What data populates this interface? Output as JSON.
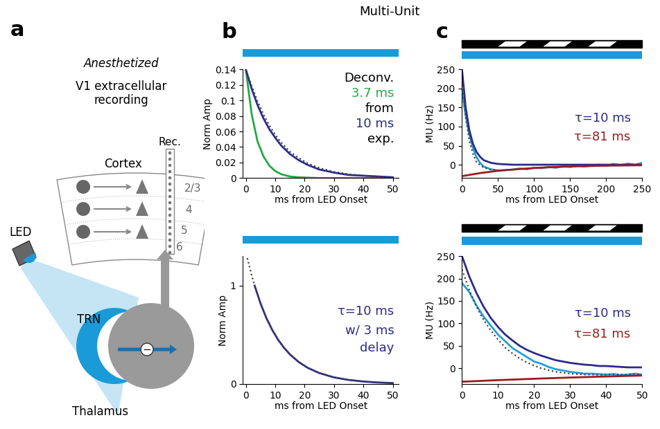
{
  "figure": {
    "title": "Multi-Unit",
    "panel_labels": [
      "a",
      "b",
      "c"
    ]
  },
  "diagram": {
    "condition": "Anesthetized",
    "recording": [
      "V1 extracellular",
      "recording"
    ],
    "probe": "Rec.",
    "cortex": "Cortex",
    "layers": [
      "2/3",
      "4",
      "5",
      "6"
    ],
    "led": "LED",
    "trn": "TRN",
    "thalamus": "Thalamus",
    "inhibition_sign": "−"
  },
  "chart_data": [
    {
      "type": "line",
      "x_label": "ms from LED Onset",
      "y_label": "Norm Amp",
      "xlim": [
        -1,
        52
      ],
      "ylim": [
        0,
        0.14
      ],
      "xticks": [
        0,
        10,
        20,
        30,
        40,
        50
      ],
      "yticks": [
        0,
        0.02,
        0.04,
        0.06,
        0.08,
        0.1,
        0.12,
        0.14
      ],
      "annotations": [
        {
          "text": "Deconv.",
          "color": "#000000"
        },
        {
          "text": "3.7 ms",
          "color": "#22a844"
        },
        {
          "text": "from",
          "color": "#000000"
        },
        {
          "text": "10 ms",
          "color": "#2b2a8c"
        },
        {
          "text": "exp.",
          "color": "#000000"
        }
      ],
      "series": [
        {
          "color": "#22a844",
          "line_style": "solid",
          "x": [
            0,
            2,
            4,
            6,
            8,
            10,
            12,
            15,
            18,
            21,
            25,
            30,
            35,
            40,
            45,
            50
          ],
          "values": [
            0.14,
            0.082,
            0.047,
            0.028,
            0.016,
            0.009,
            0.005,
            0.002,
            0.001,
            0.0005,
            0,
            0,
            0,
            0,
            0,
            0
          ]
        },
        {
          "color": "#2b2a8c",
          "line_style": "solid",
          "x": [
            0,
            2,
            4,
            6,
            8,
            10,
            12,
            15,
            18,
            21,
            25,
            30,
            35,
            40,
            45,
            50
          ],
          "values": [
            0.14,
            0.115,
            0.094,
            0.077,
            0.063,
            0.052,
            0.042,
            0.031,
            0.023,
            0.017,
            0.011,
            0.007,
            0.004,
            0.003,
            0.002,
            0.001
          ]
        },
        {
          "color": "#444444",
          "line_style": "dotted",
          "x": [
            0,
            2,
            4,
            6,
            8,
            10,
            12,
            15,
            18,
            21,
            25,
            30,
            35,
            40,
            45,
            50
          ],
          "values": [
            0.14,
            0.119,
            0.099,
            0.082,
            0.068,
            0.056,
            0.046,
            0.034,
            0.026,
            0.019,
            0.013,
            0.008,
            0.005,
            0.003,
            0.002,
            0.001
          ]
        }
      ]
    },
    {
      "type": "line",
      "x_label": "ms from LED Onset",
      "y_label": "Norm Amp",
      "xlim": [
        -1,
        52
      ],
      "ylim": [
        0,
        1.3
      ],
      "xticks": [
        0,
        10,
        20,
        30,
        40,
        50
      ],
      "yticks": [
        0,
        1
      ],
      "annotations": [
        {
          "text": "τ=10 ms",
          "color": "#2b2a8c"
        },
        {
          "text": "w/ 3 ms",
          "color": "#2b2a8c"
        },
        {
          "text": "delay",
          "color": "#2b2a8c"
        }
      ],
      "series": [
        {
          "color": "#2b2a8c",
          "line_style": "solid",
          "x": [
            3,
            5,
            7,
            9,
            11,
            13,
            15,
            18,
            21,
            25,
            30,
            35,
            40,
            45,
            50
          ],
          "values": [
            1.0,
            0.819,
            0.67,
            0.549,
            0.449,
            0.368,
            0.301,
            0.223,
            0.165,
            0.111,
            0.067,
            0.041,
            0.025,
            0.015,
            0.009
          ]
        },
        {
          "color": "#444444",
          "line_style": "dotted",
          "x": [
            0.5,
            2,
            3,
            5,
            7,
            9,
            11,
            13,
            15,
            18,
            21,
            25,
            30,
            35,
            40,
            45,
            50
          ],
          "values": [
            1.28,
            1.105,
            1.0,
            0.819,
            0.67,
            0.549,
            0.449,
            0.368,
            0.301,
            0.223,
            0.165,
            0.111,
            0.067,
            0.041,
            0.025,
            0.015,
            0.009
          ]
        }
      ]
    },
    {
      "type": "line",
      "x_label": "ms from LED Onset",
      "y_label": "MU (Hz)",
      "xlim": [
        0,
        250
      ],
      "ylim": [
        -35,
        250
      ],
      "xticks": [
        0,
        50,
        100,
        150,
        200,
        250
      ],
      "yticks": [
        0,
        50,
        100,
        150,
        200,
        250
      ],
      "annotations": [
        {
          "text": "τ=10 ms",
          "color": "#2b2a8c"
        },
        {
          "text": "τ=81 ms",
          "color": "#9b1c1c"
        }
      ],
      "series": [
        {
          "color": "#1fa0d8",
          "line_style": "solid",
          "x": [
            0,
            5,
            10,
            15,
            20,
            25,
            30,
            40,
            50,
            60,
            70,
            80,
            90,
            100,
            110,
            120,
            130,
            140,
            150,
            160,
            170,
            180,
            190,
            200,
            210,
            220,
            230,
            240,
            250
          ],
          "values": [
            195,
            130,
            80,
            45,
            20,
            5,
            -5,
            -12,
            -15,
            -14,
            -13,
            -10,
            -12,
            -8,
            -9,
            -6,
            -8,
            -4,
            -6,
            -3,
            -5,
            -2,
            0,
            -3,
            2,
            -1,
            3,
            0,
            5
          ]
        },
        {
          "color": "#2b2a8c",
          "line_style": "solid",
          "x": [
            0,
            5,
            10,
            15,
            20,
            25,
            30,
            40,
            50,
            60,
            70,
            100,
            150,
            200,
            250
          ],
          "values": [
            250,
            152,
            92,
            56,
            34,
            21,
            12,
            5,
            2,
            1,
            0,
            0,
            0,
            0,
            0
          ]
        },
        {
          "color": "#9b1c1c",
          "line_style": "solid",
          "x": [
            0,
            25,
            50,
            75,
            100,
            125,
            150,
            175,
            200,
            225,
            250
          ],
          "values": [
            -30,
            -22,
            -16,
            -12,
            -8.7,
            -6.4,
            -4.7,
            -3.5,
            -2.5,
            -1.9,
            -1.4
          ]
        },
        {
          "color": "#444444",
          "line_style": "dotted",
          "x": [
            0,
            5,
            10,
            15,
            20,
            25,
            30,
            40,
            50
          ],
          "values": [
            220,
            125,
            65,
            30,
            7,
            -1,
            -7,
            -13,
            -14
          ]
        }
      ]
    },
    {
      "type": "line",
      "x_label": "ms from LED Onset",
      "y_label": "MU (Hz)",
      "xlim": [
        0,
        50
      ],
      "ylim": [
        -35,
        250
      ],
      "xticks": [
        0,
        10,
        20,
        30,
        40,
        50
      ],
      "yticks": [
        0,
        50,
        100,
        150,
        200,
        250
      ],
      "annotations": [
        {
          "text": "τ=10 ms",
          "color": "#2b2a8c"
        },
        {
          "text": "τ=81 ms",
          "color": "#9b1c1c"
        }
      ],
      "series": [
        {
          "color": "#1fa0d8",
          "line_style": "solid",
          "x": [
            0,
            2,
            4,
            6,
            8,
            10,
            12,
            14,
            16,
            18,
            20,
            22,
            24,
            26,
            28,
            30,
            32,
            34,
            36,
            38,
            40,
            42,
            44,
            46,
            48,
            50
          ],
          "values": [
            190,
            170,
            140,
            115,
            95,
            75,
            60,
            45,
            35,
            25,
            15,
            10,
            3,
            -2,
            -5,
            -8,
            -10,
            -12,
            -12,
            -13,
            -14,
            -13,
            -15,
            -14,
            -12,
            -14
          ]
        },
        {
          "color": "#2b2a8c",
          "line_style": "solid",
          "x": [
            0,
            2,
            4,
            6,
            8,
            10,
            12,
            14,
            16,
            18,
            20,
            22,
            24,
            26,
            28,
            30,
            32,
            34,
            36,
            38,
            40,
            42,
            44,
            46,
            48,
            50
          ],
          "values": [
            250,
            205,
            168,
            137,
            112,
            92,
            75,
            62,
            50,
            41,
            34,
            28,
            23,
            18,
            15,
            12,
            10,
            8,
            7,
            5,
            5,
            4,
            3,
            2,
            2,
            2
          ]
        },
        {
          "color": "#9b1c1c",
          "line_style": "solid",
          "x": [
            0,
            10,
            20,
            30,
            40,
            50
          ],
          "values": [
            -30,
            -26.5,
            -23.4,
            -20.7,
            -18.3,
            -16.2
          ]
        },
        {
          "color": "#444444",
          "line_style": "dotted",
          "x": [
            0,
            2,
            4,
            6,
            8,
            10,
            12,
            14,
            16,
            18,
            20,
            22,
            24,
            26,
            28,
            30,
            32,
            34,
            36,
            38,
            40,
            42,
            44,
            46,
            48,
            50
          ],
          "values": [
            220,
            175,
            138,
            108,
            84,
            64,
            46,
            33,
            22,
            13,
            6,
            0,
            -4,
            -8,
            -10,
            -12,
            -13,
            -14,
            -14,
            -15,
            -14,
            -14,
            -14,
            -14,
            -14,
            -14
          ]
        }
      ]
    }
  ]
}
